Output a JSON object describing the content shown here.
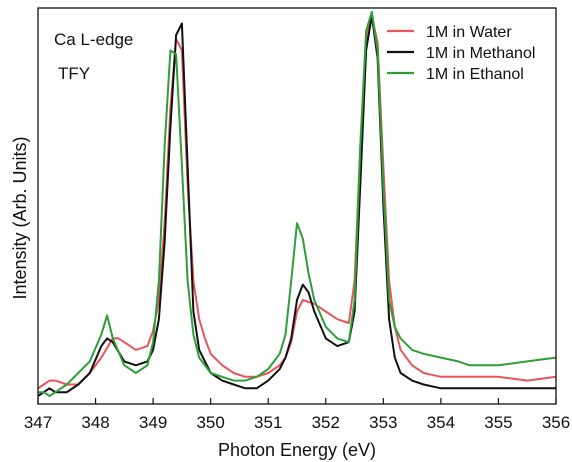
{
  "chart_data": {
    "type": "line",
    "title": "",
    "xlabel": "Photon Energy (eV)",
    "ylabel": "Intensity (Arb. Units)",
    "xlim": [
      347,
      356
    ],
    "ylim": [
      0,
      1.0
    ],
    "x_ticks": [
      347,
      348,
      349,
      350,
      351,
      352,
      353,
      354,
      355,
      356
    ],
    "y_ticks_labeled": false,
    "grid": false,
    "legend_position": "top-right",
    "annotations": [
      "Ca L-edge",
      "TFY"
    ],
    "series": [
      {
        "name": "1M in Water",
        "color": "#e8555a",
        "x": [
          347.0,
          347.1,
          347.2,
          347.3,
          347.5,
          347.7,
          347.9,
          348.1,
          348.3,
          348.4,
          348.5,
          348.7,
          348.9,
          349.0,
          349.1,
          349.2,
          349.3,
          349.4,
          349.5,
          349.6,
          349.7,
          349.8,
          349.9,
          350.0,
          350.2,
          350.4,
          350.6,
          350.8,
          351.0,
          351.2,
          351.3,
          351.4,
          351.5,
          351.6,
          351.8,
          352.0,
          352.2,
          352.4,
          352.5,
          352.6,
          352.7,
          352.8,
          352.9,
          353.0,
          353.1,
          353.2,
          353.3,
          353.5,
          353.7,
          354.0,
          354.5,
          355.0,
          355.5,
          356.0
        ],
        "y": [
          0.02,
          0.03,
          0.04,
          0.04,
          0.03,
          0.03,
          0.06,
          0.1,
          0.15,
          0.15,
          0.14,
          0.12,
          0.13,
          0.17,
          0.25,
          0.45,
          0.75,
          0.93,
          0.9,
          0.55,
          0.3,
          0.2,
          0.15,
          0.11,
          0.08,
          0.06,
          0.05,
          0.05,
          0.06,
          0.08,
          0.1,
          0.14,
          0.22,
          0.25,
          0.24,
          0.22,
          0.2,
          0.19,
          0.3,
          0.65,
          0.93,
          0.99,
          0.92,
          0.6,
          0.3,
          0.18,
          0.12,
          0.08,
          0.06,
          0.05,
          0.05,
          0.05,
          0.04,
          0.05
        ]
      },
      {
        "name": "1M in Methanol",
        "color": "#111111",
        "x": [
          347.0,
          347.1,
          347.2,
          347.3,
          347.5,
          347.7,
          347.9,
          348.1,
          348.2,
          348.3,
          348.5,
          348.7,
          348.9,
          349.0,
          349.1,
          349.2,
          349.3,
          349.4,
          349.5,
          349.6,
          349.7,
          349.8,
          350.0,
          350.2,
          350.4,
          350.6,
          350.8,
          351.0,
          351.2,
          351.3,
          351.4,
          351.5,
          351.6,
          351.7,
          351.8,
          352.0,
          352.2,
          352.4,
          352.5,
          352.6,
          352.7,
          352.8,
          352.9,
          353.0,
          353.1,
          353.2,
          353.3,
          353.5,
          353.7,
          354.0,
          354.5,
          355.0,
          355.5,
          356.0
        ],
        "y": [
          0.0,
          0.01,
          0.02,
          0.01,
          0.01,
          0.03,
          0.06,
          0.13,
          0.15,
          0.14,
          0.09,
          0.08,
          0.09,
          0.12,
          0.2,
          0.4,
          0.7,
          0.94,
          0.97,
          0.6,
          0.22,
          0.12,
          0.06,
          0.04,
          0.03,
          0.02,
          0.02,
          0.04,
          0.07,
          0.1,
          0.15,
          0.25,
          0.29,
          0.27,
          0.22,
          0.15,
          0.13,
          0.14,
          0.22,
          0.55,
          0.9,
          0.99,
          0.88,
          0.5,
          0.2,
          0.1,
          0.06,
          0.04,
          0.03,
          0.02,
          0.02,
          0.02,
          0.02,
          0.02
        ]
      },
      {
        "name": "1M in Ethanol",
        "color": "#2e9e3a",
        "x": [
          347.0,
          347.1,
          347.2,
          347.3,
          347.5,
          347.7,
          347.9,
          348.1,
          348.2,
          348.3,
          348.5,
          348.7,
          348.9,
          349.0,
          349.1,
          349.2,
          349.3,
          349.4,
          349.5,
          349.6,
          349.7,
          349.8,
          350.0,
          350.2,
          350.4,
          350.6,
          350.8,
          351.0,
          351.2,
          351.3,
          351.4,
          351.5,
          351.6,
          351.7,
          351.8,
          352.0,
          352.2,
          352.4,
          352.5,
          352.6,
          352.7,
          352.8,
          352.9,
          353.0,
          353.1,
          353.2,
          353.3,
          353.5,
          353.7,
          354.0,
          354.3,
          354.5,
          354.8,
          355.0,
          355.5,
          356.0
        ],
        "y": [
          0.01,
          0.01,
          0.0,
          0.01,
          0.03,
          0.06,
          0.09,
          0.16,
          0.21,
          0.15,
          0.08,
          0.06,
          0.08,
          0.14,
          0.3,
          0.65,
          0.9,
          0.89,
          0.6,
          0.3,
          0.16,
          0.1,
          0.06,
          0.05,
          0.04,
          0.04,
          0.05,
          0.07,
          0.11,
          0.16,
          0.3,
          0.45,
          0.41,
          0.32,
          0.25,
          0.18,
          0.15,
          0.14,
          0.25,
          0.65,
          0.95,
          1.0,
          0.9,
          0.55,
          0.25,
          0.18,
          0.15,
          0.12,
          0.11,
          0.1,
          0.09,
          0.08,
          0.08,
          0.08,
          0.09,
          0.1
        ]
      }
    ]
  }
}
